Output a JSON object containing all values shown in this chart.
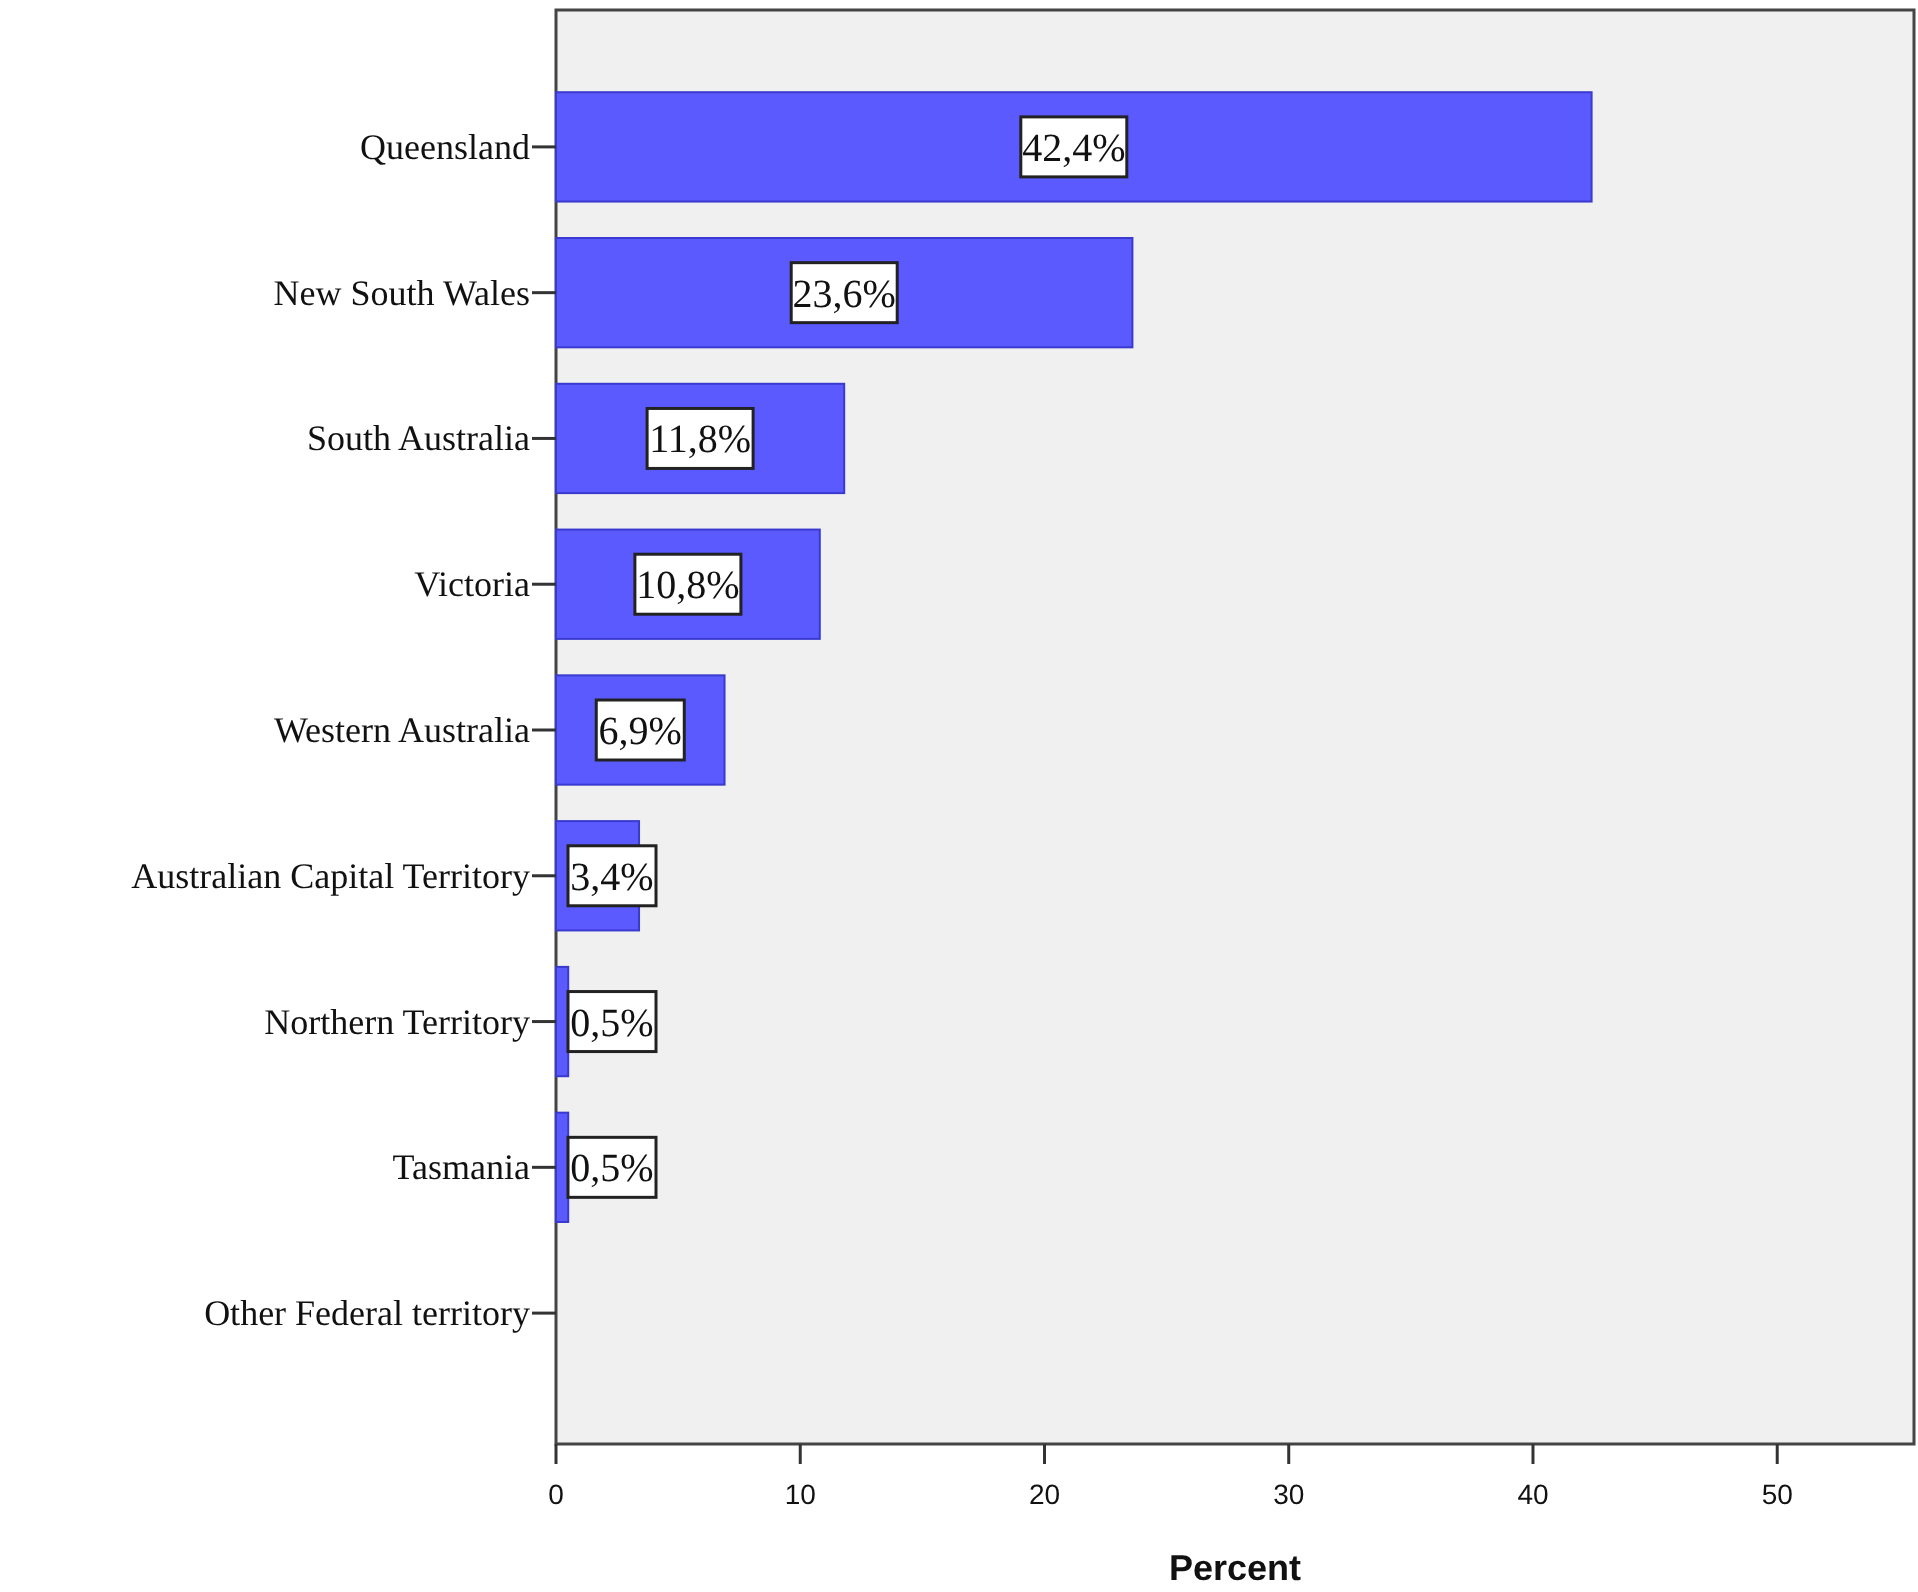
{
  "chart_data": {
    "type": "bar",
    "orientation": "horizontal",
    "xlabel": "Percent",
    "categories": [
      "Queensland",
      "New South Wales",
      "South Australia",
      "Victoria",
      "Western Australia",
      "Australian Capital Territory",
      "Northern Territory",
      "Tasmania",
      "Other Federal territory"
    ],
    "values": [
      42.4,
      23.6,
      11.8,
      10.8,
      6.9,
      3.4,
      0.5,
      0.5,
      0
    ],
    "value_labels": [
      "42,4%",
      "23,6%",
      "11,8%",
      "10,8%",
      "6,9%",
      "3,4%",
      "0,5%",
      "0,5%",
      null
    ],
    "color": "#5a5aff",
    "xlim": [
      0,
      55.6
    ],
    "xticks": [
      0,
      10,
      20,
      30,
      40,
      50
    ],
    "grid": false
  }
}
